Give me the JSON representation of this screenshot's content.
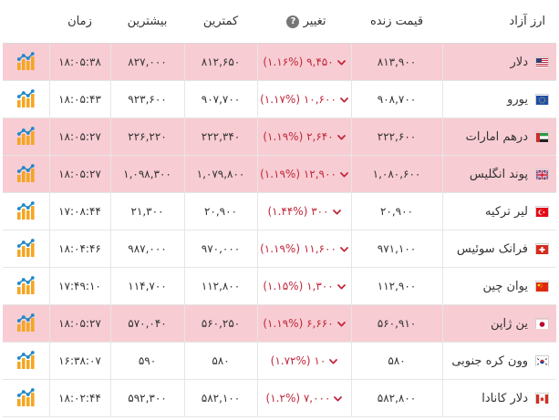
{
  "headers": {
    "name": "ارز آزاد",
    "price": "قیمت زنده",
    "change": "تغییر",
    "low": "کمترین",
    "high": "بیشترین",
    "time": "زمان"
  },
  "colors": {
    "highlight_row": "#f8ccd3",
    "change_negative": "#c0283b"
  },
  "rows": [
    {
      "name": "دلار",
      "flag": "flag-us-icon",
      "price": "۸۱۳,۹۰۰",
      "change": "۹,۴۵۰ (۱.۱۶%)",
      "low": "۸۱۲,۶۵۰",
      "high": "۸۲۷,۰۰۰",
      "time": "۱۸:۰۵:۳۸",
      "highlighted": true
    },
    {
      "name": "یورو",
      "flag": "flag-eu-icon",
      "price": "۹۰۸,۷۰۰",
      "change": "۱۰,۶۰۰ (۱.۱۷%)",
      "low": "۹۰۷,۷۰۰",
      "high": "۹۲۳,۶۰۰",
      "time": "۱۸:۰۵:۴۳",
      "highlighted": false
    },
    {
      "name": "درهم امارات",
      "flag": "flag-ae-icon",
      "price": "۲۲۲,۶۰۰",
      "change": "۲,۶۴۰ (۱.۱۹%)",
      "low": "۲۲۲,۳۴۰",
      "high": "۲۲۶,۲۲۰",
      "time": "۱۸:۰۵:۲۷",
      "highlighted": true
    },
    {
      "name": "پوند انگلیس",
      "flag": "flag-gb-icon",
      "price": "۱,۰۸۰,۶۰۰",
      "change": "۱۲,۹۰۰ (۱.۱۹%)",
      "low": "۱,۰۷۹,۸۰۰",
      "high": "۱,۰۹۸,۳۰۰",
      "time": "۱۸:۰۵:۲۷",
      "highlighted": true
    },
    {
      "name": "لیر ترکیه",
      "flag": "flag-tr-icon",
      "price": "۲۰,۹۰۰",
      "change": "۳۰۰ (۱.۴۴%)",
      "low": "۲۰,۹۰۰",
      "high": "۲۱,۳۰۰",
      "time": "۱۷:۰۸:۴۴",
      "highlighted": false
    },
    {
      "name": "فرانک سوئیس",
      "flag": "flag-ch-icon",
      "price": "۹۷۱,۱۰۰",
      "change": "۱۱,۶۰۰ (۱.۱۹%)",
      "low": "۹۷۰,۰۰۰",
      "high": "۹۸۷,۰۰۰",
      "time": "۱۸:۰۴:۴۶",
      "highlighted": false
    },
    {
      "name": "یوان چین",
      "flag": "flag-cn-icon",
      "price": "۱۱۲,۹۰۰",
      "change": "۱,۳۰۰ (۱.۱۵%)",
      "low": "۱۱۲,۸۰۰",
      "high": "۱۱۴,۷۰۰",
      "time": "۱۷:۴۹:۱۰",
      "highlighted": false
    },
    {
      "name": "ین ژاپن",
      "flag": "flag-jp-icon",
      "price": "۵۶۰,۹۱۰",
      "change": "۶,۶۶۰ (۱.۱۹%)",
      "low": "۵۶۰,۲۵۰",
      "high": "۵۷۰,۰۴۰",
      "time": "۱۸:۰۵:۲۷",
      "highlighted": true
    },
    {
      "name": "وون کره جنوبی",
      "flag": "flag-kr-icon",
      "price": "۵۸۰",
      "change": "۱۰ (۱.۷۲%)",
      "low": "۵۸۰",
      "high": "۵۹۰",
      "time": "۱۶:۳۸:۰۷",
      "highlighted": false
    },
    {
      "name": "دلار کانادا",
      "flag": "flag-ca-icon",
      "price": "۵۸۲,۸۰۰",
      "change": "۷,۰۰۰ (۱.۲%)",
      "low": "۵۸۲,۱۰۰",
      "high": "۵۹۲,۳۰۰",
      "time": "۱۸:۰۲:۴۴",
      "highlighted": false
    }
  ]
}
